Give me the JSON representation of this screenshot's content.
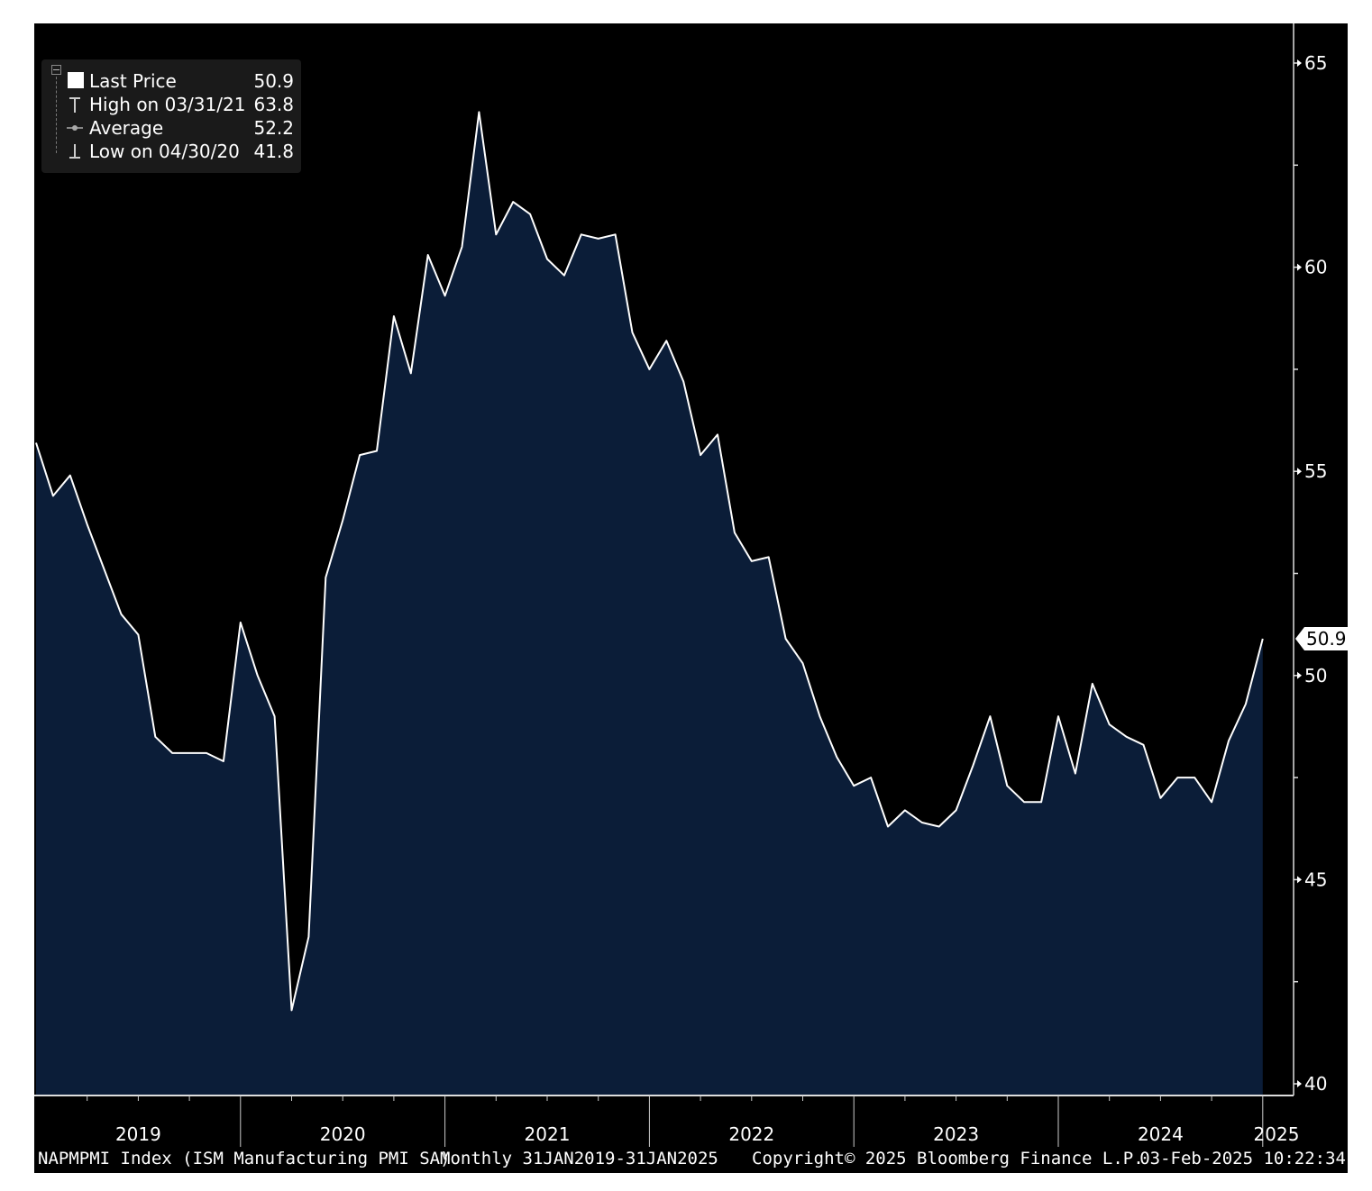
{
  "legend": {
    "last_price_label": "Last Price",
    "last_price_value": "50.9",
    "high_label": "High on 03/31/21",
    "high_value": "63.8",
    "average_label": "Average",
    "average_value": "52.2",
    "low_label": "Low on 04/30/20",
    "low_value": "41.8"
  },
  "last_value_tag": "50.9",
  "footer": {
    "security": "NAPMPMI Index (ISM Manufacturing PMI SA)",
    "range": "Monthly 31JAN2019-31JAN2025",
    "copyright": "Copyright© 2025 Bloomberg Finance L.P.",
    "timestamp": "03-Feb-2025 10:22:34"
  },
  "colors": {
    "background": "#000000",
    "area_fill": "#0b1d38",
    "line": "#ffffff"
  },
  "chart_data": {
    "type": "area",
    "title": "",
    "xlabel": "",
    "ylabel": "",
    "x_start": "2019-01",
    "x_end": "2025-01",
    "x_frequency": "monthly",
    "year_labels": [
      "2019",
      "2020",
      "2021",
      "2022",
      "2023",
      "2024",
      "2025"
    ],
    "y_ticks": [
      40,
      45,
      50,
      55,
      60,
      65
    ],
    "ylim": [
      39.7,
      65.8
    ],
    "y_axis_side": "right",
    "grid": false,
    "legend_position": "top-left",
    "series": [
      {
        "values": [
          55.7,
          54.4,
          54.9,
          53.7,
          52.6,
          51.5,
          51.0,
          48.5,
          48.1,
          48.1,
          48.1,
          47.9,
          51.3,
          50.0,
          49.0,
          41.8,
          43.6,
          52.4,
          53.8,
          55.4,
          55.5,
          58.8,
          57.4,
          60.3,
          59.3,
          60.5,
          63.8,
          60.8,
          61.6,
          61.3,
          60.2,
          59.8,
          60.8,
          60.7,
          60.8,
          58.4,
          57.5,
          58.2,
          57.2,
          55.4,
          55.9,
          53.5,
          52.8,
          52.9,
          50.9,
          50.3,
          49.0,
          48.0,
          47.3,
          47.5,
          46.3,
          46.7,
          46.4,
          46.3,
          46.7,
          47.8,
          49.0,
          47.3,
          46.9,
          46.9,
          49.0,
          47.6,
          49.8,
          48.8,
          48.5,
          48.3,
          47.0,
          47.5,
          47.5,
          46.9,
          48.4,
          49.3,
          50.9
        ]
      }
    ]
  }
}
